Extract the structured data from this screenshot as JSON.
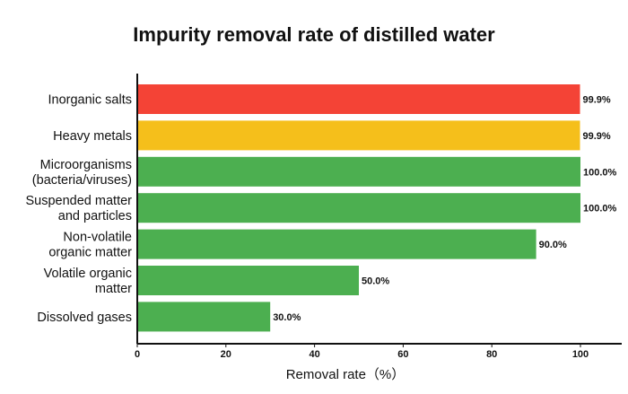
{
  "chart_data": {
    "type": "bar",
    "orientation": "horizontal",
    "title": "Impurity removal rate of distilled water",
    "xlabel": "Removal rate（%）",
    "ylabel": "",
    "categories": [
      [
        "Inorganic salts"
      ],
      [
        "Heavy metals"
      ],
      [
        "Microorganisms",
        "(bacteria/viruses)"
      ],
      [
        "Suspended matter",
        "and particles"
      ],
      [
        "Non-volatile",
        "organic matter"
      ],
      [
        "Volatile organic",
        "matter"
      ],
      [
        "Dissolved gases"
      ]
    ],
    "values": [
      99.9,
      99.9,
      100.0,
      100.0,
      90.0,
      50.0,
      30.0
    ],
    "value_labels": [
      "99.9%",
      "99.9%",
      "100.0%",
      "100.0%",
      "90.0%",
      "50.0%",
      "30.0%"
    ],
    "bar_colors": [
      "#f44336",
      "#f5bf1b",
      "#4caf50",
      "#4caf50",
      "#4caf50",
      "#4caf50",
      "#4caf50"
    ],
    "xticks": [
      0,
      20,
      40,
      60,
      80,
      100
    ],
    "xlim": [
      0,
      110
    ],
    "grid": false,
    "legend": "none"
  }
}
